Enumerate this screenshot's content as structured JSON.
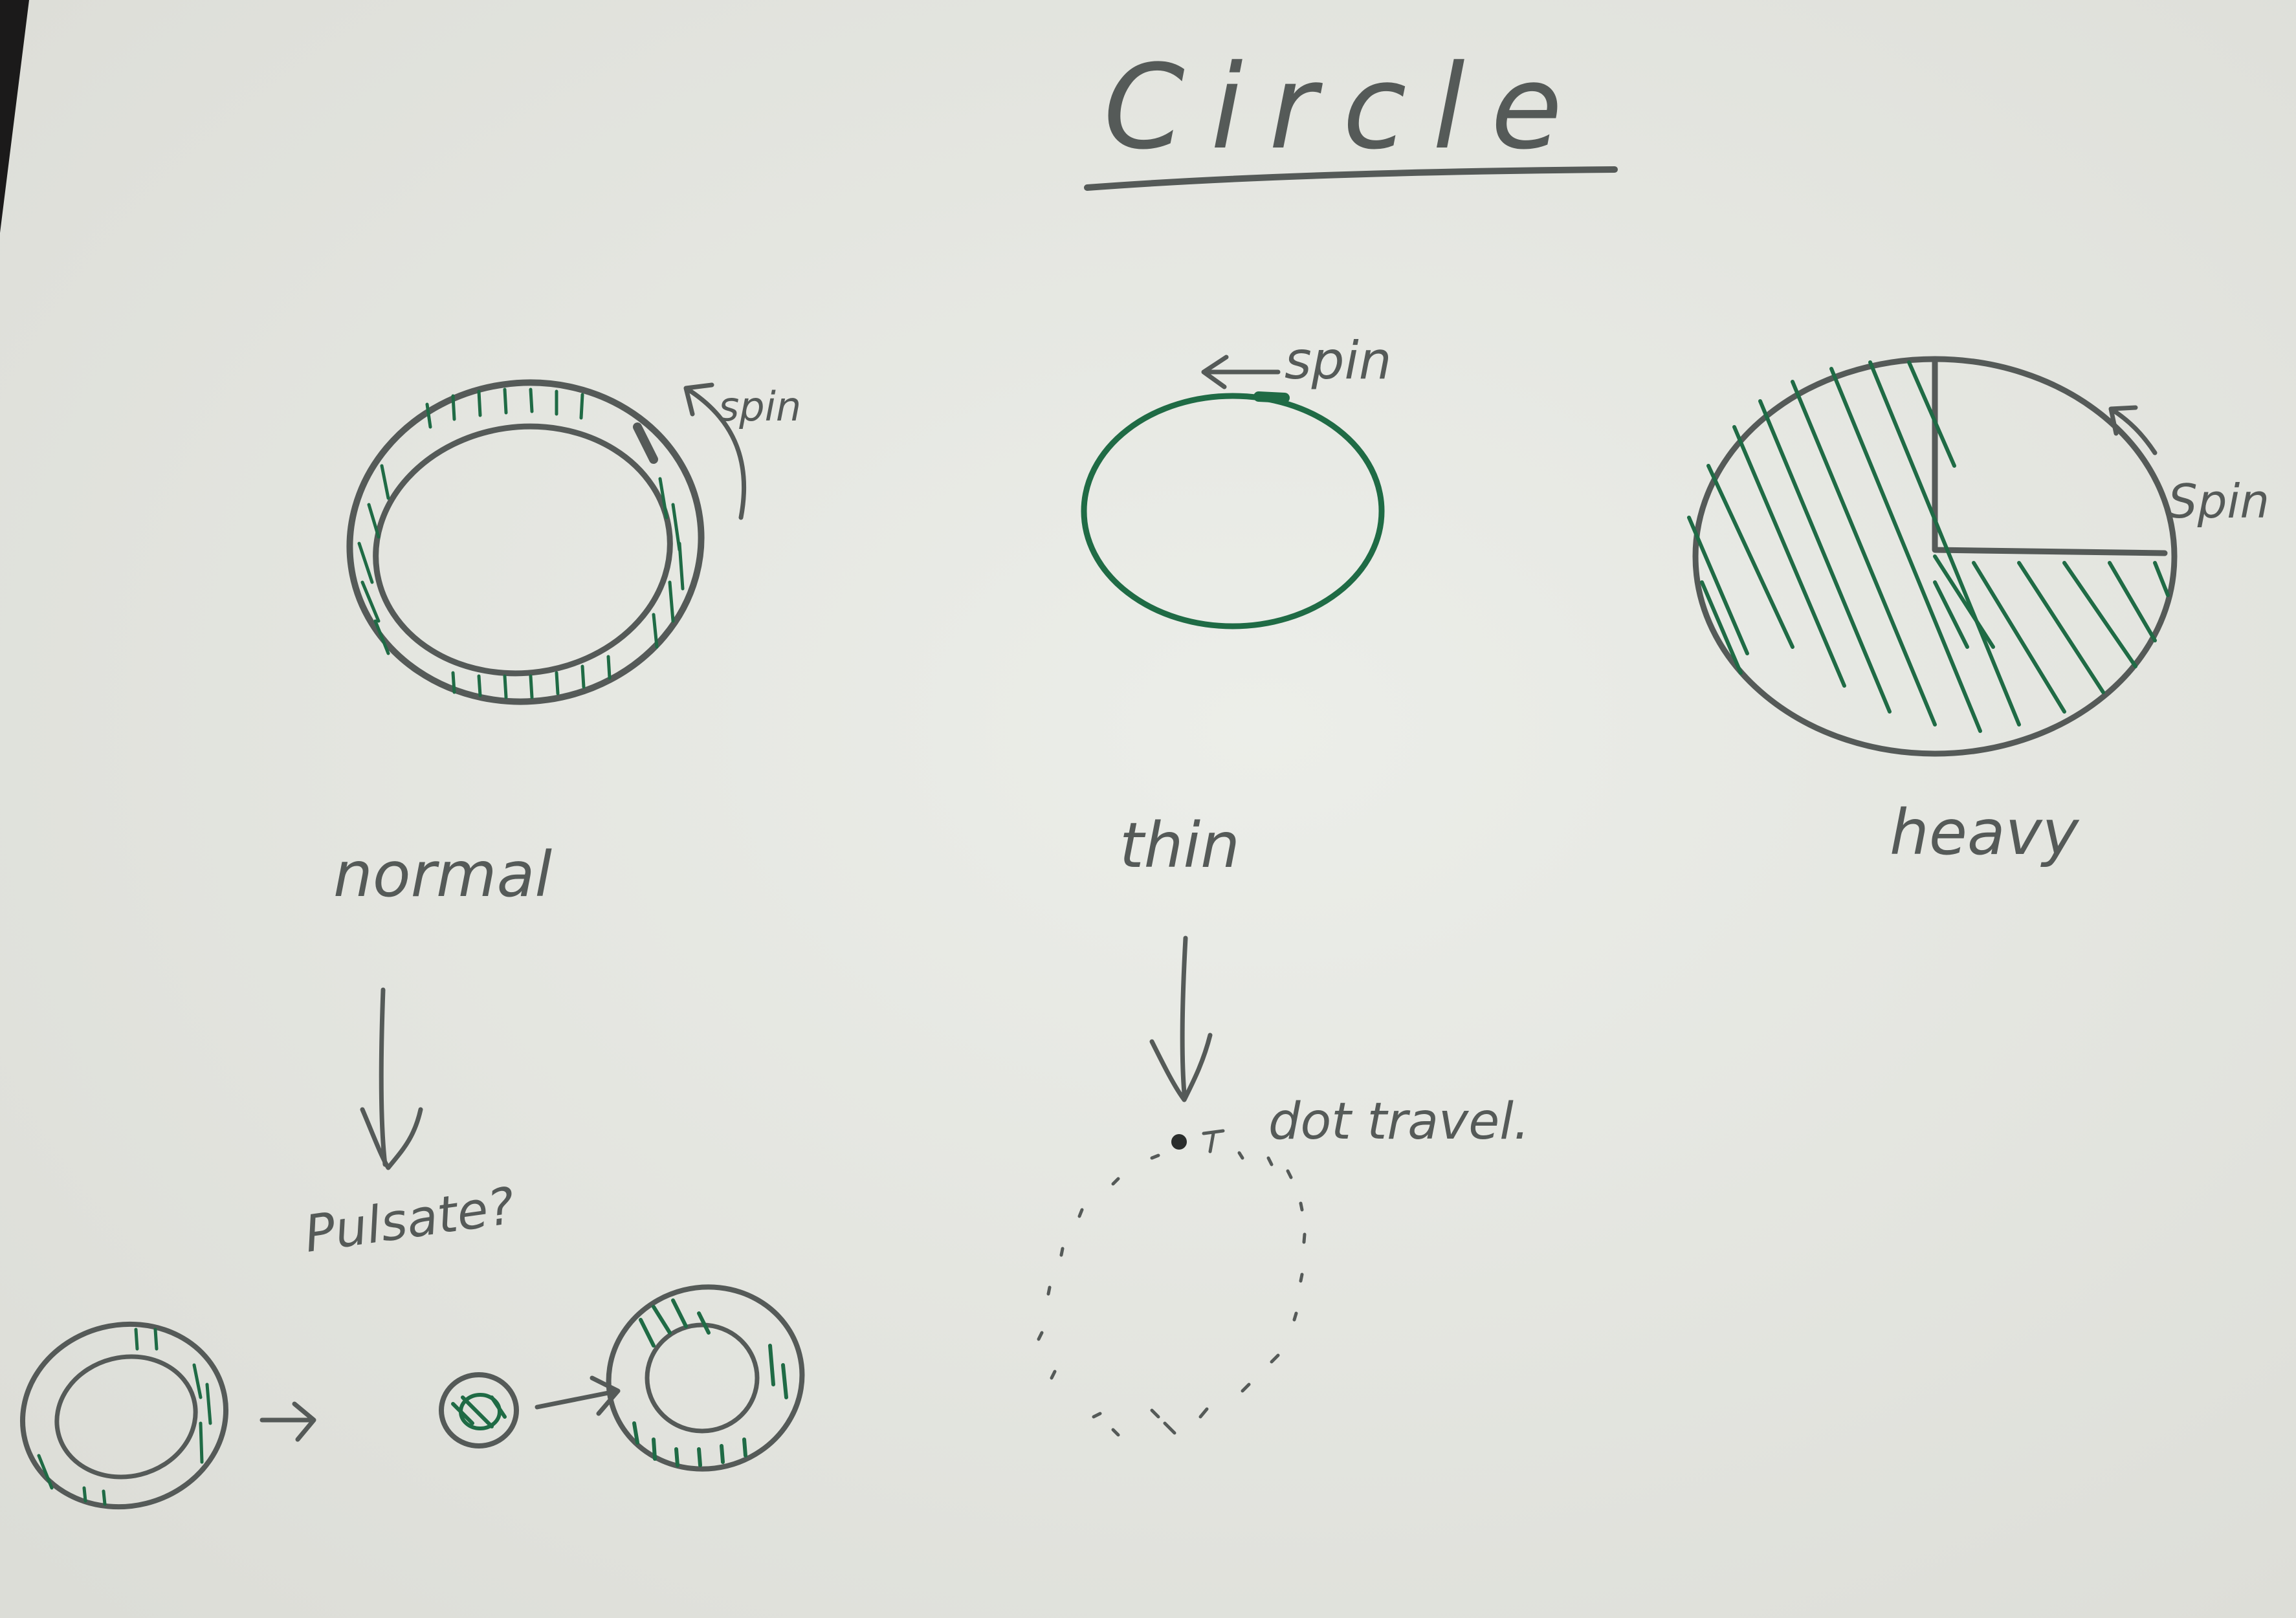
{
  "title": "Circle",
  "sketches": {
    "normal": {
      "label": "normal",
      "annotation": "spin"
    },
    "thin": {
      "label": "thin",
      "annotation": "spin"
    },
    "heavy": {
      "label": "heavy",
      "annotation": "Spin"
    }
  },
  "notes": {
    "pulsate": "Pulsate?",
    "dot_travel": "dot travel."
  },
  "colors": {
    "paper": "#e6e7e2",
    "pencil": "#555a58",
    "green_ink": "#1f6b45"
  }
}
